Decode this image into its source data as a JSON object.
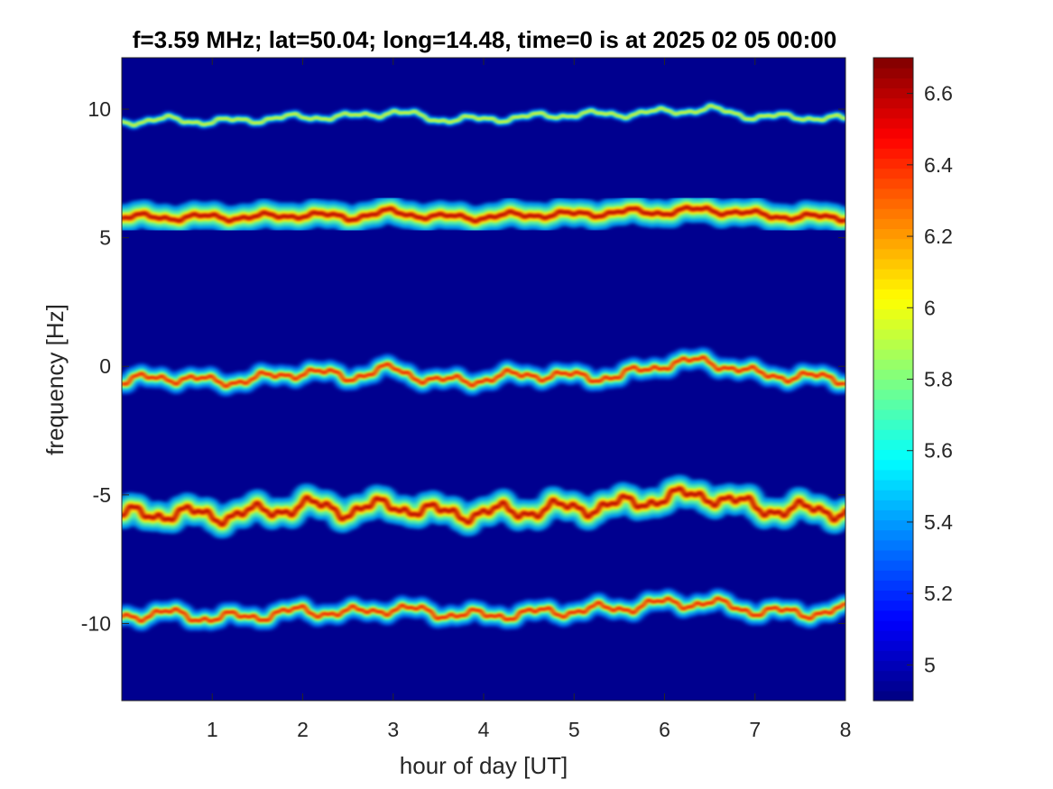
{
  "chart_data": {
    "type": "heatmap",
    "title": "f=3.59 MHz;  lat=50.04; long=14.48, time=0 is at 2025 02 05 00:00",
    "xlabel": "hour of day [UT]",
    "ylabel": "frequency [Hz]",
    "xlim": [
      0,
      8
    ],
    "ylim": [
      -13,
      12
    ],
    "xticks": [
      1,
      2,
      3,
      4,
      5,
      6,
      7,
      8
    ],
    "yticks": [
      10,
      5,
      0,
      -5,
      -10
    ],
    "grid": false,
    "colormap": "jet",
    "colorbar": {
      "limits": [
        4.9,
        6.7
      ],
      "ticks": [
        4.9,
        5,
        5.2,
        5.4,
        5.6,
        5.8,
        6,
        6.2,
        6.4,
        6.6
      ],
      "tick_labels": [
        "",
        "5",
        "5.2",
        "5.4",
        "5.6",
        "5.8",
        "6",
        "6.2",
        "6.4",
        "6.6"
      ]
    },
    "background_color": "#00008f",
    "series": [
      {
        "center_freq_hz": 9.5,
        "intensity": "weak",
        "variability": "low",
        "x": [
          0,
          0.5,
          1,
          1.5,
          2,
          2.5,
          3,
          3.5,
          4,
          4.5,
          5,
          5.5,
          6,
          6.5,
          7,
          7.5,
          8
        ],
        "y": [
          9.5,
          9.6,
          9.5,
          9.6,
          9.7,
          9.7,
          9.9,
          9.6,
          9.6,
          9.7,
          9.8,
          9.8,
          9.9,
          10.0,
          9.7,
          9.7,
          9.6
        ]
      },
      {
        "center_freq_hz": 5.8,
        "intensity": "strong",
        "variability": "low",
        "x": [
          0,
          0.5,
          1,
          1.5,
          2,
          2.5,
          3,
          3.5,
          4,
          4.5,
          5,
          5.5,
          6,
          6.5,
          7,
          7.5,
          8
        ],
        "y": [
          5.8,
          5.8,
          5.8,
          5.8,
          5.9,
          5.8,
          6.0,
          5.8,
          5.8,
          5.9,
          5.9,
          6.0,
          6.0,
          6.1,
          5.9,
          5.8,
          5.8
        ]
      },
      {
        "center_freq_hz": -0.5,
        "intensity": "medium",
        "variability": "medium",
        "x": [
          0,
          0.5,
          1,
          1.5,
          2,
          2.5,
          3,
          3.5,
          4,
          4.5,
          5,
          5.5,
          6,
          6.5,
          7,
          7.5,
          8
        ],
        "y": [
          -0.6,
          -0.4,
          -0.6,
          -0.5,
          -0.2,
          -0.4,
          -0.1,
          -0.6,
          -0.5,
          -0.3,
          -0.4,
          -0.4,
          0.1,
          0.2,
          -0.3,
          -0.4,
          -0.5
        ]
      },
      {
        "center_freq_hz": -5.7,
        "intensity": "strong",
        "variability": "high",
        "x": [
          0,
          0.5,
          1,
          1.5,
          2,
          2.5,
          3,
          3.5,
          4,
          4.5,
          5,
          5.5,
          6,
          6.5,
          7,
          7.5,
          8
        ],
        "y": [
          -5.8,
          -5.7,
          -5.8,
          -5.7,
          -5.4,
          -5.6,
          -5.4,
          -5.7,
          -5.7,
          -5.6,
          -5.5,
          -5.4,
          -5.1,
          -5.0,
          -5.5,
          -5.6,
          -5.6
        ]
      },
      {
        "center_freq_hz": -9.7,
        "intensity": "medium",
        "variability": "medium",
        "x": [
          0,
          0.5,
          1,
          1.5,
          2,
          2.5,
          3,
          3.5,
          4,
          4.5,
          5,
          5.5,
          6,
          6.5,
          7,
          7.5,
          8
        ],
        "y": [
          -9.7,
          -9.6,
          -9.8,
          -9.7,
          -9.5,
          -9.6,
          -9.4,
          -9.6,
          -9.7,
          -9.6,
          -9.5,
          -9.4,
          -9.2,
          -9.2,
          -9.5,
          -9.6,
          -9.5
        ]
      }
    ]
  }
}
